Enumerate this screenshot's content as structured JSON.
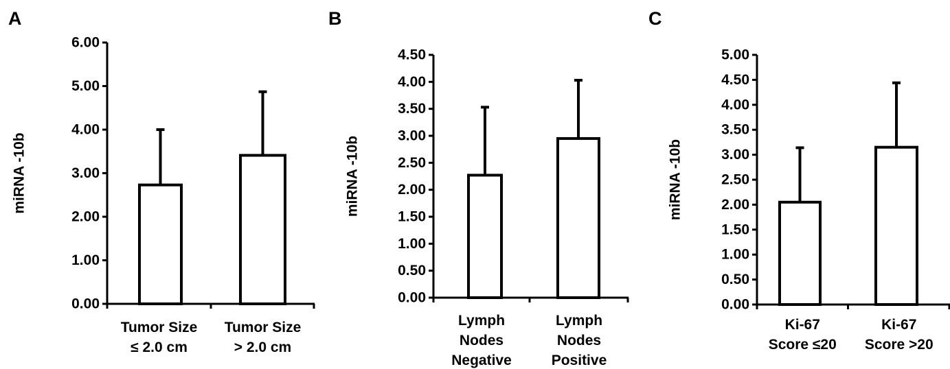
{
  "chart_data": [
    {
      "type": "bar",
      "panel_label": "A",
      "ylabel": "miRNA -10b",
      "xlabel": "",
      "ylim": [
        0,
        6
      ],
      "yticks": [
        "0.00",
        "1.00",
        "2.00",
        "3.00",
        "4.00",
        "5.00",
        "6.00"
      ],
      "categories": [
        [
          "Tumor Size",
          "≤ 2.0 cm"
        ],
        [
          "Tumor Size",
          "> 2.0 cm"
        ]
      ],
      "values": [
        2.73,
        3.41
      ],
      "errors": [
        1.27,
        1.46
      ],
      "grid": false
    },
    {
      "type": "bar",
      "panel_label": "B",
      "ylabel": "miRNA -10b",
      "xlabel": "",
      "ylim": [
        0,
        4.5
      ],
      "yticks": [
        "0.00",
        "0.50",
        "1.00",
        "1.50",
        "2.00",
        "2.50",
        "3.00",
        "3.50",
        "4.00",
        "4.50"
      ],
      "categories": [
        [
          "Lymph",
          "Nodes",
          "Negative"
        ],
        [
          "Lymph",
          "Nodes",
          "Positive"
        ]
      ],
      "values": [
        2.27,
        2.95
      ],
      "errors": [
        1.26,
        1.08
      ],
      "grid": false
    },
    {
      "type": "bar",
      "panel_label": "C",
      "ylabel": "miRNA -10b",
      "xlabel": "",
      "ylim": [
        0,
        5
      ],
      "yticks": [
        "0.00",
        "0.50",
        "1.00",
        "1.50",
        "2.00",
        "2.50",
        "3.00",
        "3.50",
        "4.00",
        "4.50",
        "5.00"
      ],
      "categories": [
        [
          "Ki-67",
          "Score ≤20"
        ],
        [
          "Ki-67",
          "Score >20"
        ]
      ],
      "values": [
        2.05,
        3.15
      ],
      "errors": [
        1.09,
        1.29
      ],
      "grid": false
    }
  ]
}
